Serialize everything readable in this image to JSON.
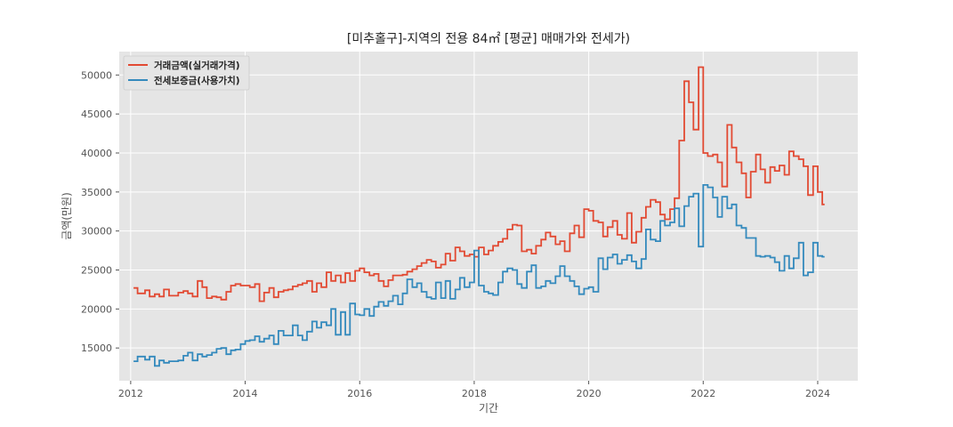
{
  "chart_data": {
    "type": "line",
    "step": true,
    "title": "[미추홀구]-지역의 전용 84㎡ [평균] 매매가와 전세가)",
    "xlabel": "기간",
    "ylabel": "금액(만원)",
    "xlim": [
      2011.8,
      2024.7
    ],
    "ylim": [
      10800,
      53000
    ],
    "x_ticks": [
      2012,
      2014,
      2016,
      2018,
      2020,
      2022,
      2024
    ],
    "y_ticks": [
      15000,
      20000,
      25000,
      30000,
      35000,
      40000,
      45000,
      50000
    ],
    "grid": true,
    "legend_position": "upper-left",
    "series": [
      {
        "name": "거래금액(실거래가격)",
        "color": "#E24A33",
        "points": [
          [
            2012.05,
            22700
          ],
          [
            2012.12,
            22000
          ],
          [
            2012.25,
            22400
          ],
          [
            2012.33,
            21600
          ],
          [
            2012.42,
            21900
          ],
          [
            2012.5,
            21600
          ],
          [
            2012.58,
            22500
          ],
          [
            2012.67,
            21700
          ],
          [
            2012.83,
            22100
          ],
          [
            2012.92,
            22300
          ],
          [
            2013.0,
            22000
          ],
          [
            2013.08,
            21600
          ],
          [
            2013.17,
            23600
          ],
          [
            2013.25,
            22800
          ],
          [
            2013.33,
            21400
          ],
          [
            2013.42,
            21600
          ],
          [
            2013.5,
            21500
          ],
          [
            2013.58,
            21200
          ],
          [
            2013.67,
            22200
          ],
          [
            2013.75,
            23000
          ],
          [
            2013.83,
            23200
          ],
          [
            2013.92,
            23000
          ],
          [
            2014.08,
            22800
          ],
          [
            2014.17,
            23200
          ],
          [
            2014.25,
            21000
          ],
          [
            2014.33,
            22100
          ],
          [
            2014.42,
            22700
          ],
          [
            2014.5,
            21500
          ],
          [
            2014.58,
            22200
          ],
          [
            2014.67,
            22400
          ],
          [
            2014.75,
            22500
          ],
          [
            2014.83,
            22900
          ],
          [
            2014.92,
            23100
          ],
          [
            2015.0,
            23300
          ],
          [
            2015.08,
            23600
          ],
          [
            2015.17,
            22200
          ],
          [
            2015.25,
            23300
          ],
          [
            2015.33,
            22800
          ],
          [
            2015.42,
            24700
          ],
          [
            2015.5,
            23600
          ],
          [
            2015.58,
            24300
          ],
          [
            2015.67,
            23400
          ],
          [
            2015.75,
            24600
          ],
          [
            2015.83,
            23600
          ],
          [
            2015.92,
            24900
          ],
          [
            2016.0,
            25200
          ],
          [
            2016.08,
            24700
          ],
          [
            2016.17,
            24300
          ],
          [
            2016.25,
            24500
          ],
          [
            2016.33,
            23600
          ],
          [
            2016.42,
            22900
          ],
          [
            2016.5,
            23700
          ],
          [
            2016.58,
            24300
          ],
          [
            2016.75,
            24400
          ],
          [
            2016.83,
            24800
          ],
          [
            2016.92,
            25100
          ],
          [
            2017.0,
            25500
          ],
          [
            2017.08,
            25900
          ],
          [
            2017.17,
            26300
          ],
          [
            2017.25,
            26100
          ],
          [
            2017.33,
            25300
          ],
          [
            2017.42,
            25700
          ],
          [
            2017.5,
            27100
          ],
          [
            2017.58,
            26200
          ],
          [
            2017.67,
            27900
          ],
          [
            2017.75,
            27400
          ],
          [
            2017.83,
            26800
          ],
          [
            2017.92,
            27000
          ],
          [
            2018.0,
            26700
          ],
          [
            2018.08,
            27900
          ],
          [
            2018.17,
            27000
          ],
          [
            2018.25,
            27500
          ],
          [
            2018.33,
            28100
          ],
          [
            2018.42,
            28600
          ],
          [
            2018.5,
            29000
          ],
          [
            2018.58,
            30200
          ],
          [
            2018.67,
            30800
          ],
          [
            2018.75,
            30700
          ],
          [
            2018.83,
            27400
          ],
          [
            2018.92,
            27600
          ],
          [
            2019.0,
            27100
          ],
          [
            2019.08,
            28100
          ],
          [
            2019.17,
            28900
          ],
          [
            2019.25,
            29800
          ],
          [
            2019.33,
            29300
          ],
          [
            2019.42,
            28300
          ],
          [
            2019.5,
            28700
          ],
          [
            2019.58,
            27400
          ],
          [
            2019.67,
            29700
          ],
          [
            2019.75,
            30700
          ],
          [
            2019.83,
            29200
          ],
          [
            2019.92,
            32800
          ],
          [
            2020.0,
            32600
          ],
          [
            2020.08,
            31300
          ],
          [
            2020.17,
            31100
          ],
          [
            2020.25,
            29300
          ],
          [
            2020.33,
            30500
          ],
          [
            2020.42,
            31300
          ],
          [
            2020.5,
            29500
          ],
          [
            2020.58,
            29000
          ],
          [
            2020.67,
            32300
          ],
          [
            2020.75,
            28500
          ],
          [
            2020.83,
            29900
          ],
          [
            2020.92,
            31700
          ],
          [
            2021.0,
            33100
          ],
          [
            2021.08,
            34000
          ],
          [
            2021.17,
            33700
          ],
          [
            2021.25,
            32100
          ],
          [
            2021.33,
            31500
          ],
          [
            2021.42,
            32800
          ],
          [
            2021.5,
            34200
          ],
          [
            2021.58,
            41600
          ],
          [
            2021.67,
            49200
          ],
          [
            2021.75,
            46500
          ],
          [
            2021.83,
            43000
          ],
          [
            2021.92,
            51000
          ],
          [
            2022.0,
            40000
          ],
          [
            2022.08,
            39600
          ],
          [
            2022.17,
            39800
          ],
          [
            2022.25,
            38800
          ],
          [
            2022.33,
            35700
          ],
          [
            2022.42,
            43600
          ],
          [
            2022.5,
            40700
          ],
          [
            2022.58,
            38800
          ],
          [
            2022.67,
            37400
          ],
          [
            2022.75,
            34300
          ],
          [
            2022.83,
            37600
          ],
          [
            2022.92,
            39800
          ],
          [
            2023.0,
            37900
          ],
          [
            2023.08,
            36200
          ],
          [
            2023.17,
            38200
          ],
          [
            2023.25,
            37700
          ],
          [
            2023.33,
            38400
          ],
          [
            2023.42,
            37200
          ],
          [
            2023.5,
            40200
          ],
          [
            2023.58,
            39600
          ],
          [
            2023.67,
            39200
          ],
          [
            2023.75,
            38300
          ],
          [
            2023.83,
            34600
          ],
          [
            2023.92,
            38300
          ],
          [
            2024.0,
            35000
          ],
          [
            2024.08,
            33400
          ],
          [
            2024.12,
            33400
          ]
        ]
      },
      {
        "name": "전세보증금(사용가치)",
        "color": "#348ABD",
        "points": [
          [
            2012.05,
            13300
          ],
          [
            2012.12,
            13900
          ],
          [
            2012.25,
            13500
          ],
          [
            2012.33,
            13900
          ],
          [
            2012.42,
            12700
          ],
          [
            2012.5,
            13400
          ],
          [
            2012.58,
            13100
          ],
          [
            2012.67,
            13300
          ],
          [
            2012.83,
            13400
          ],
          [
            2012.92,
            14000
          ],
          [
            2013.0,
            14400
          ],
          [
            2013.08,
            13400
          ],
          [
            2013.17,
            14200
          ],
          [
            2013.25,
            13900
          ],
          [
            2013.33,
            14100
          ],
          [
            2013.42,
            14400
          ],
          [
            2013.5,
            14900
          ],
          [
            2013.58,
            15000
          ],
          [
            2013.67,
            14200
          ],
          [
            2013.75,
            14700
          ],
          [
            2013.83,
            14800
          ],
          [
            2013.92,
            15500
          ],
          [
            2014.0,
            15900
          ],
          [
            2014.08,
            16000
          ],
          [
            2014.17,
            16500
          ],
          [
            2014.25,
            15800
          ],
          [
            2014.33,
            16200
          ],
          [
            2014.42,
            16600
          ],
          [
            2014.5,
            15500
          ],
          [
            2014.58,
            17200
          ],
          [
            2014.67,
            16600
          ],
          [
            2014.75,
            16600
          ],
          [
            2014.83,
            17900
          ],
          [
            2014.92,
            16600
          ],
          [
            2015.0,
            16000
          ],
          [
            2015.08,
            17100
          ],
          [
            2015.17,
            18400
          ],
          [
            2015.25,
            17600
          ],
          [
            2015.33,
            18300
          ],
          [
            2015.42,
            17900
          ],
          [
            2015.5,
            20000
          ],
          [
            2015.58,
            16700
          ],
          [
            2015.67,
            19600
          ],
          [
            2015.75,
            16700
          ],
          [
            2015.83,
            20700
          ],
          [
            2015.92,
            19300
          ],
          [
            2016.0,
            19200
          ],
          [
            2016.08,
            20000
          ],
          [
            2016.17,
            19100
          ],
          [
            2016.25,
            20300
          ],
          [
            2016.33,
            20900
          ],
          [
            2016.42,
            20400
          ],
          [
            2016.5,
            21000
          ],
          [
            2016.58,
            21700
          ],
          [
            2016.67,
            20600
          ],
          [
            2016.75,
            22000
          ],
          [
            2016.83,
            23800
          ],
          [
            2016.92,
            22800
          ],
          [
            2017.0,
            23300
          ],
          [
            2017.08,
            22200
          ],
          [
            2017.17,
            21500
          ],
          [
            2017.25,
            21300
          ],
          [
            2017.33,
            23400
          ],
          [
            2017.42,
            21400
          ],
          [
            2017.5,
            23600
          ],
          [
            2017.58,
            21300
          ],
          [
            2017.67,
            22500
          ],
          [
            2017.75,
            24000
          ],
          [
            2017.83,
            22800
          ],
          [
            2017.92,
            23400
          ],
          [
            2018.0,
            27500
          ],
          [
            2018.08,
            23000
          ],
          [
            2018.17,
            22200
          ],
          [
            2018.25,
            22000
          ],
          [
            2018.33,
            21800
          ],
          [
            2018.42,
            23400
          ],
          [
            2018.5,
            24800
          ],
          [
            2018.58,
            25200
          ],
          [
            2018.67,
            25000
          ],
          [
            2018.75,
            23200
          ],
          [
            2018.83,
            22700
          ],
          [
            2018.92,
            24800
          ],
          [
            2019.0,
            25600
          ],
          [
            2019.08,
            22700
          ],
          [
            2019.17,
            22900
          ],
          [
            2019.25,
            23600
          ],
          [
            2019.33,
            23300
          ],
          [
            2019.42,
            24200
          ],
          [
            2019.5,
            25500
          ],
          [
            2019.58,
            24200
          ],
          [
            2019.67,
            23600
          ],
          [
            2019.75,
            22900
          ],
          [
            2019.83,
            21900
          ],
          [
            2019.92,
            22600
          ],
          [
            2020.0,
            22800
          ],
          [
            2020.08,
            22200
          ],
          [
            2020.17,
            26500
          ],
          [
            2020.25,
            25100
          ],
          [
            2020.33,
            26600
          ],
          [
            2020.42,
            27000
          ],
          [
            2020.5,
            25800
          ],
          [
            2020.58,
            26300
          ],
          [
            2020.67,
            26900
          ],
          [
            2020.75,
            26100
          ],
          [
            2020.83,
            25200
          ],
          [
            2020.92,
            26400
          ],
          [
            2021.0,
            30200
          ],
          [
            2021.08,
            28900
          ],
          [
            2021.17,
            28700
          ],
          [
            2021.25,
            31300
          ],
          [
            2021.33,
            30700
          ],
          [
            2021.42,
            31100
          ],
          [
            2021.5,
            32900
          ],
          [
            2021.58,
            30600
          ],
          [
            2021.67,
            33200
          ],
          [
            2021.75,
            34400
          ],
          [
            2021.83,
            34800
          ],
          [
            2021.92,
            28000
          ],
          [
            2022.0,
            35900
          ],
          [
            2022.08,
            35600
          ],
          [
            2022.17,
            34300
          ],
          [
            2022.25,
            31800
          ],
          [
            2022.33,
            34400
          ],
          [
            2022.42,
            32900
          ],
          [
            2022.5,
            33400
          ],
          [
            2022.58,
            30700
          ],
          [
            2022.67,
            30400
          ],
          [
            2022.75,
            29100
          ],
          [
            2022.83,
            29100
          ],
          [
            2022.92,
            26800
          ],
          [
            2023.0,
            26700
          ],
          [
            2023.08,
            26800
          ],
          [
            2023.17,
            26600
          ],
          [
            2023.25,
            26000
          ],
          [
            2023.33,
            24900
          ],
          [
            2023.42,
            26800
          ],
          [
            2023.5,
            25200
          ],
          [
            2023.58,
            26500
          ],
          [
            2023.67,
            28500
          ],
          [
            2023.75,
            24300
          ],
          [
            2023.83,
            24700
          ],
          [
            2023.92,
            28500
          ],
          [
            2024.0,
            26800
          ],
          [
            2024.08,
            26700
          ],
          [
            2024.12,
            26700
          ]
        ]
      }
    ]
  }
}
